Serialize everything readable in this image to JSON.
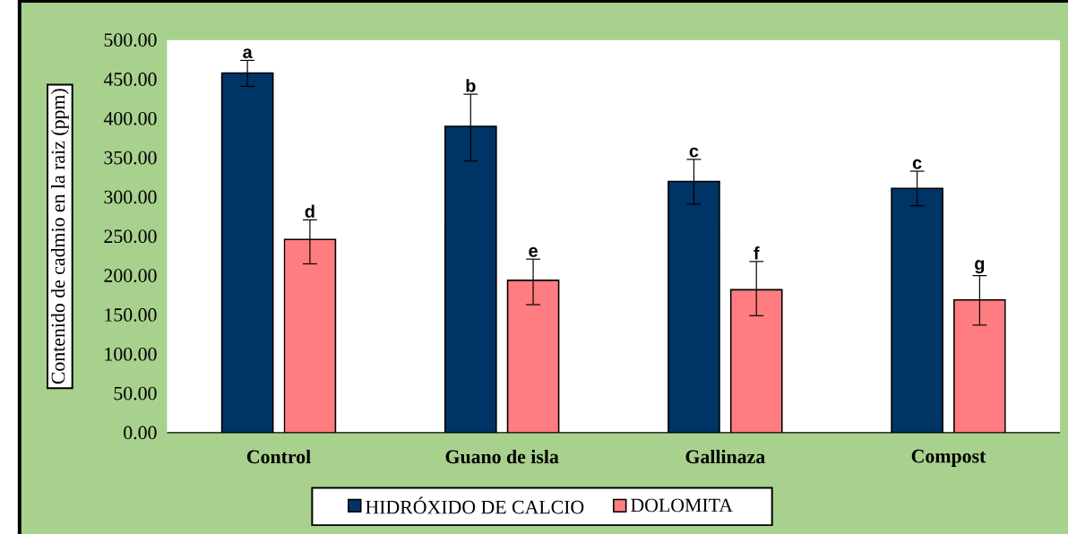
{
  "chart_data": {
    "type": "bar",
    "ylabel": "Contenido de cadmio en la raiz (ppm)",
    "categories": [
      "Control",
      "Guano de isla",
      "Gallinaza",
      "Compost"
    ],
    "series": [
      {
        "name": "HIDRÓXIDO DE CALCIO",
        "color": "#003366",
        "values": [
          458,
          390,
          320,
          311
        ],
        "errors": [
          [
            441,
            474
          ],
          [
            346,
            431
          ],
          [
            291,
            348
          ],
          [
            289,
            333
          ]
        ]
      },
      {
        "name": "DOLOMITA",
        "color": "#ff7c80",
        "values": [
          246,
          194,
          182,
          169
        ],
        "errors": [
          [
            215,
            271
          ],
          [
            163,
            221
          ],
          [
            149,
            218
          ],
          [
            137,
            200
          ]
        ]
      }
    ],
    "annotations": [
      "a",
      "d",
      "b",
      "e",
      "c",
      "f",
      "c",
      "g"
    ],
    "ylim": [
      0,
      500
    ],
    "yticks": [
      {
        "value": 0,
        "label": "0.00"
      },
      {
        "value": 50,
        "label": "50.00"
      },
      {
        "value": 100,
        "label": "100.00"
      },
      {
        "value": 150,
        "label": "150.00"
      },
      {
        "value": 200,
        "label": "200.00"
      },
      {
        "value": 250,
        "label": "250.00"
      },
      {
        "value": 300,
        "label": "300.00"
      },
      {
        "value": 350,
        "label": "350.00"
      },
      {
        "value": 400,
        "label": "400.00"
      },
      {
        "value": 450,
        "label": "450.00"
      },
      {
        "value": 500,
        "label": "500.00"
      }
    ],
    "legend": "bottom",
    "grid": false
  }
}
